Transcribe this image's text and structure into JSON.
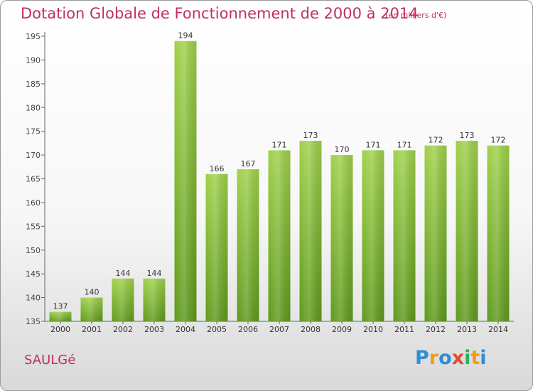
{
  "header": {
    "title": "Dotation Globale de Fonctionnement de 2000 à 2014",
    "subtitle": "(en milliers d'€)"
  },
  "footer": {
    "commune": "SAULGé",
    "brand_letters": [
      "P",
      "r",
      "o",
      "x",
      "i",
      "t",
      "i"
    ],
    "brand_colors": [
      "#2d8fd5",
      "#f39c12",
      "#2d8fd5",
      "#e8492f",
      "#27ae60",
      "#f39c12",
      "#2d8fd5"
    ]
  },
  "chart_data": {
    "type": "bar",
    "title": "Dotation Globale de Fonctionnement de 2000 à 2014",
    "subtitle": "(en milliers d'€)",
    "categories": [
      "2000",
      "2001",
      "2002",
      "2003",
      "2004",
      "2005",
      "2006",
      "2007",
      "2008",
      "2009",
      "2010",
      "2011",
      "2012",
      "2013",
      "2014"
    ],
    "values": [
      137,
      140,
      144,
      144,
      194,
      166,
      167,
      171,
      173,
      170,
      171,
      171,
      172,
      173,
      172
    ],
    "ylim": [
      135,
      195
    ],
    "yticks": [
      135,
      140,
      145,
      150,
      155,
      160,
      165,
      170,
      175,
      180,
      185,
      190,
      195
    ],
    "grid": false,
    "bar_color": "#7cb82f",
    "bar_color_light": "#9fd14a",
    "bar_color_dark": "#5e9a1c"
  }
}
